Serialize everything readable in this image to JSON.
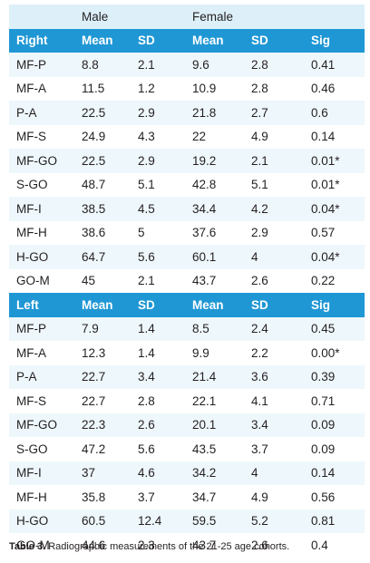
{
  "groups": {
    "male": "Male",
    "female": "Female"
  },
  "sections": [
    {
      "header": [
        "Right",
        "Mean",
        "SD",
        "Mean",
        "SD",
        "Sig"
      ],
      "rows": [
        [
          "MF-P",
          "8.8",
          "2.1",
          "9.6",
          "2.8",
          "0.41"
        ],
        [
          "MF-A",
          "11.5",
          "1.2",
          "10.9",
          "2.8",
          "0.46"
        ],
        [
          "P-A",
          "22.5",
          "2.9",
          "21.8",
          "2.7",
          "0.6"
        ],
        [
          "MF-S",
          "24.9",
          "4.3",
          "22",
          "4.9",
          "0.14"
        ],
        [
          "MF-GO",
          "22.5",
          "2.9",
          "19.2",
          "2.1",
          "0.01*"
        ],
        [
          "S-GO",
          "48.7",
          "5.1",
          "42.8",
          "5.1",
          "0.01*"
        ],
        [
          "MF-I",
          "38.5",
          "4.5",
          "34.4",
          "4.2",
          "0.04*"
        ],
        [
          "MF-H",
          "38.6",
          "5",
          "37.6",
          "2.9",
          "0.57"
        ],
        [
          "H-GO",
          "64.7",
          "5.6",
          "60.1",
          "4",
          "0.04*"
        ],
        [
          "GO-M",
          "45",
          "2.1",
          "43.7",
          "2.6",
          "0.22"
        ]
      ]
    },
    {
      "header": [
        "Left",
        "Mean",
        "SD",
        "Mean",
        "SD",
        "Sig"
      ],
      "rows": [
        [
          "MF-P",
          "7.9",
          "1.4",
          "8.5",
          "2.4",
          "0.45"
        ],
        [
          "MF-A",
          "12.3",
          "1.4",
          "9.9",
          "2.2",
          "0.00*"
        ],
        [
          "P-A",
          "22.7",
          "3.4",
          "21.4",
          "3.6",
          "0.39"
        ],
        [
          "MF-S",
          "22.7",
          "2.8",
          "22.1",
          "4.1",
          "0.71"
        ],
        [
          "MF-GO",
          "22.3",
          "2.6",
          "20.1",
          "3.4",
          "0.09"
        ],
        [
          "S-GO",
          "47.2",
          "5.6",
          "43.5",
          "3.7",
          "0.09"
        ],
        [
          "MF-I",
          "37",
          "4.6",
          "34.2",
          "4",
          "0.14"
        ],
        [
          "MF-H",
          "35.8",
          "3.7",
          "34.7",
          "4.9",
          "0.56"
        ],
        [
          "H-GO",
          "60.5",
          "12.4",
          "59.5",
          "5.2",
          "0.81"
        ],
        [
          "GO-M",
          "44.6",
          "2.3",
          "43.7",
          "2.6",
          "0.4"
        ]
      ]
    }
  ],
  "caption": {
    "label": "Table 3.",
    "text": " Radiographic measurements of the 21-25 age cohorts."
  },
  "colors": {
    "header_bg": "#1f97d4",
    "group_bg": "#ddf0f9",
    "odd_row_bg": "#eef7fc",
    "even_row_bg": "#ffffff"
  }
}
